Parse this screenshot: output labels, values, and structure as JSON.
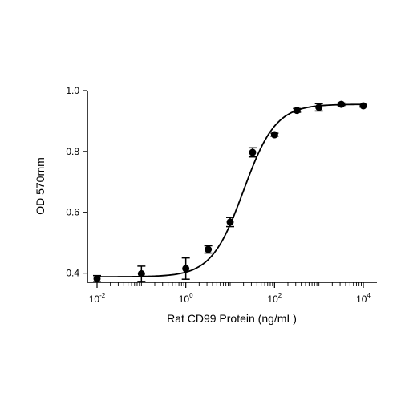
{
  "chart_data": {
    "type": "scatter",
    "title": "",
    "xlabel": "Rat CD99 Protein (ng/mL)",
    "ylabel": "OD 570mm",
    "x_scale": "log10",
    "xlim": [
      0.007,
      15000
    ],
    "ylim": [
      0.37,
      1.0
    ],
    "x_ticks": [
      {
        "value": 0.01,
        "base": "10",
        "exp": "-2"
      },
      {
        "value": 1,
        "base": "10",
        "exp": "0"
      },
      {
        "value": 100,
        "base": "10",
        "exp": "2"
      },
      {
        "value": 10000,
        "base": "10",
        "exp": "4"
      }
    ],
    "y_ticks": [
      {
        "value": 0.4,
        "label": "0.4"
      },
      {
        "value": 0.6,
        "label": "0.6"
      },
      {
        "value": 0.8,
        "label": "0.8"
      },
      {
        "value": 1.0,
        "label": "1.0"
      }
    ],
    "grid": false,
    "legend": "none",
    "colors": {
      "marker": "#000000",
      "curve": "#000000",
      "axis": "#000000"
    },
    "points": [
      {
        "x": 0.01,
        "y": 0.382,
        "err": 0.01
      },
      {
        "x": 0.1,
        "y": 0.398,
        "err": 0.025
      },
      {
        "x": 1,
        "y": 0.415,
        "err": 0.035
      },
      {
        "x": 3.2,
        "y": 0.478,
        "err": 0.012
      },
      {
        "x": 10,
        "y": 0.568,
        "err": 0.015
      },
      {
        "x": 32,
        "y": 0.797,
        "err": 0.015
      },
      {
        "x": 100,
        "y": 0.855,
        "err": 0.005
      },
      {
        "x": 320,
        "y": 0.935,
        "err": 0.006
      },
      {
        "x": 1000,
        "y": 0.945,
        "err": 0.012
      },
      {
        "x": 3200,
        "y": 0.955,
        "err": 0.004
      },
      {
        "x": 10000,
        "y": 0.95,
        "err": 0.004
      }
    ],
    "fit_curve": {
      "model": "4PL",
      "bottom": 0.388,
      "top": 0.955,
      "ec50": 20,
      "hill": 1.2
    }
  }
}
